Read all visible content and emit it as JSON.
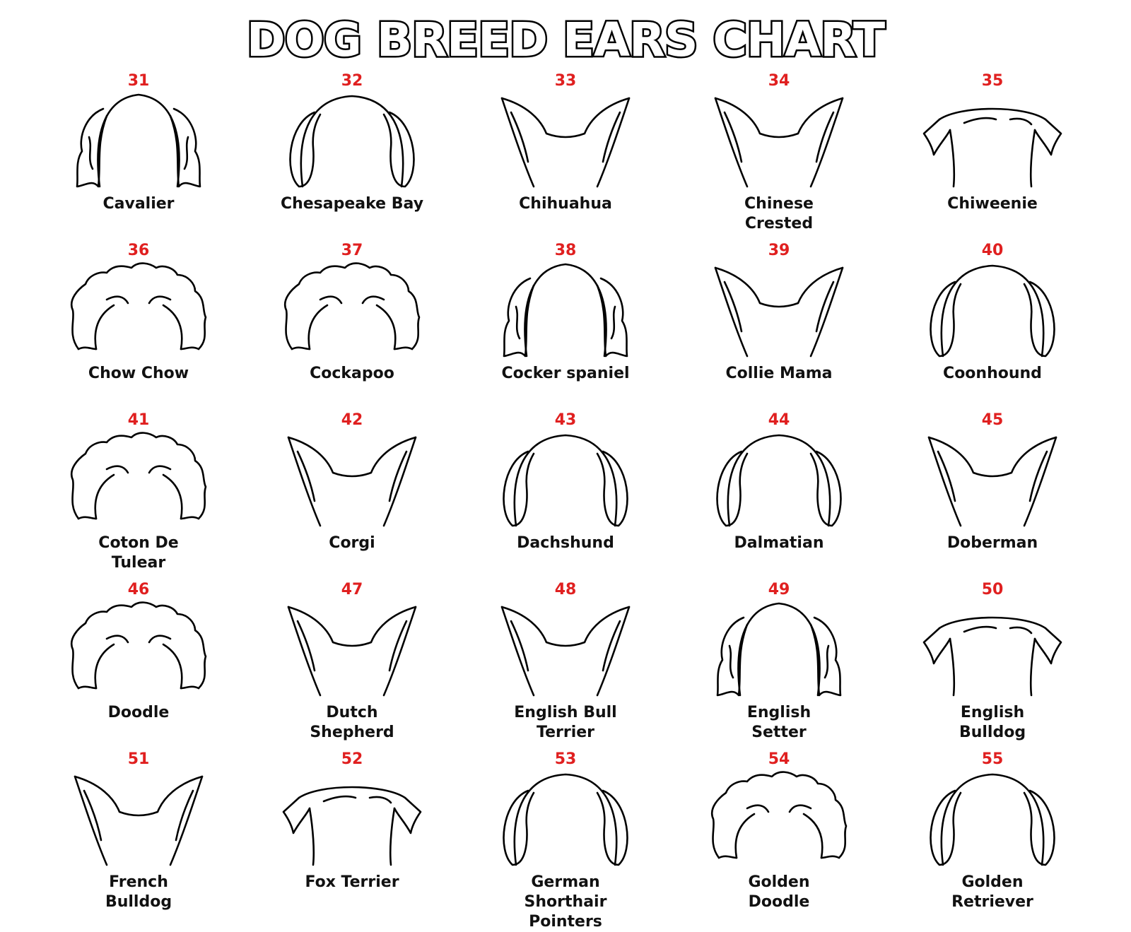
{
  "title": "DOG BREED EARS CHART",
  "colors": {
    "number": "#e02020",
    "outline": "#000000",
    "background": "#ffffff"
  },
  "breeds": [
    {
      "number": "31",
      "name": "Cavalier",
      "ear_style": "fluffy-drop"
    },
    {
      "number": "32",
      "name": "Chesapeake Bay",
      "ear_style": "drop"
    },
    {
      "number": "33",
      "name": "Chihuahua",
      "ear_style": "erect"
    },
    {
      "number": "34",
      "name": "Chinese\nCrested",
      "ear_style": "erect"
    },
    {
      "number": "35",
      "name": "Chiweenie",
      "ear_style": "fold"
    },
    {
      "number": "36",
      "name": "Chow Chow",
      "ear_style": "fluffy"
    },
    {
      "number": "37",
      "name": "Cockapoo",
      "ear_style": "fluffy"
    },
    {
      "number": "38",
      "name": "Cocker spaniel",
      "ear_style": "fluffy-drop"
    },
    {
      "number": "39",
      "name": "Collie Mama",
      "ear_style": "erect"
    },
    {
      "number": "40",
      "name": "Coonhound",
      "ear_style": "drop"
    },
    {
      "number": "41",
      "name": "Coton De\nTulear",
      "ear_style": "fluffy"
    },
    {
      "number": "42",
      "name": "Corgi",
      "ear_style": "erect"
    },
    {
      "number": "43",
      "name": "Dachshund",
      "ear_style": "drop"
    },
    {
      "number": "44",
      "name": "Dalmatian",
      "ear_style": "drop"
    },
    {
      "number": "45",
      "name": "Doberman",
      "ear_style": "erect"
    },
    {
      "number": "46",
      "name": "Doodle",
      "ear_style": "fluffy"
    },
    {
      "number": "47",
      "name": "Dutch\nShepherd",
      "ear_style": "erect"
    },
    {
      "number": "48",
      "name": "English Bull\nTerrier",
      "ear_style": "erect"
    },
    {
      "number": "49",
      "name": "English\nSetter",
      "ear_style": "fluffy-drop"
    },
    {
      "number": "50",
      "name": "English\nBulldog",
      "ear_style": "fold"
    },
    {
      "number": "51",
      "name": "French\nBulldog",
      "ear_style": "erect"
    },
    {
      "number": "52",
      "name": "Fox Terrier",
      "ear_style": "fold"
    },
    {
      "number": "53",
      "name": "German\nShorthair\nPointers",
      "ear_style": "drop"
    },
    {
      "number": "54",
      "name": "Golden\nDoodle",
      "ear_style": "fluffy"
    },
    {
      "number": "55",
      "name": "Golden\nRetriever",
      "ear_style": "drop"
    }
  ]
}
